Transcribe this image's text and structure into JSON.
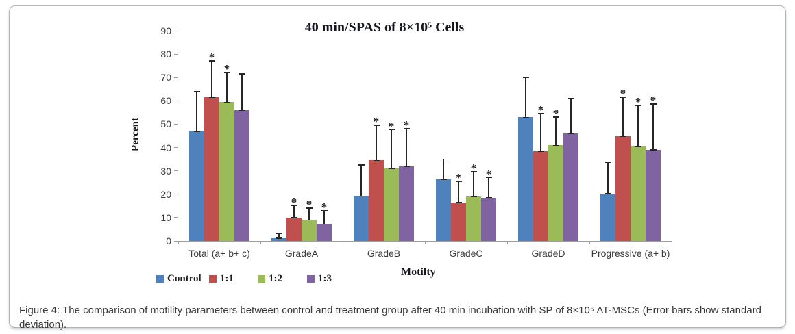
{
  "figure": {
    "caption": "Figure 4: The comparison of motility parameters between control and treatment group after 40 min incubation with SP of 8×10⁵ AT-MSCs (Error bars show standard deviation)."
  },
  "chart_data": {
    "type": "bar",
    "title": "40 min/SPAS of 8×10⁵ Cells",
    "xlabel": "Motilty",
    "ylabel": "Percent",
    "ylim": [
      0,
      90
    ],
    "ytick_step": 10,
    "yticks": [
      0,
      10,
      20,
      30,
      40,
      50,
      60,
      70,
      80,
      90
    ],
    "grid": false,
    "legend_position": "bottom-left",
    "significance_marker": "*",
    "error_bars": "standard deviation, upper whisker shown with caps",
    "categories": [
      "Total (a+ b+ c)",
      "GradeA",
      "GradeB",
      "GradeC",
      "GradeD",
      "Progressive (a+ b)"
    ],
    "series": [
      {
        "name": "Control",
        "color": "#4F81BD",
        "values": [
          47,
          1.2,
          19.3,
          26.5,
          53,
          20.3
        ],
        "error_up": [
          17,
          1.8,
          13.2,
          8.5,
          17,
          13.2
        ],
        "significant": [
          false,
          false,
          false,
          false,
          false,
          false
        ]
      },
      {
        "name": "1:1",
        "color": "#C0504D",
        "values": [
          61.5,
          10,
          34.5,
          16.5,
          38.5,
          45
        ],
        "error_up": [
          15.5,
          5,
          15,
          9,
          16,
          16.5
        ],
        "significant": [
          true,
          true,
          true,
          true,
          true,
          true
        ]
      },
      {
        "name": "1:2",
        "color": "#9BBB59",
        "values": [
          59.5,
          9,
          31,
          19,
          41,
          40.5
        ],
        "error_up": [
          12.5,
          5,
          16.5,
          10.5,
          12,
          17.5
        ],
        "significant": [
          true,
          true,
          true,
          true,
          true,
          true
        ]
      },
      {
        "name": "1:3",
        "color": "#8064A2",
        "values": [
          56,
          7.2,
          32,
          18.5,
          46,
          39
        ],
        "error_up": [
          15.5,
          5.8,
          16,
          8.5,
          15,
          19.5
        ],
        "significant": [
          false,
          true,
          true,
          true,
          false,
          true
        ]
      }
    ]
  }
}
